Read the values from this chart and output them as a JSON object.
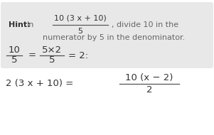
{
  "bg_color": "#ffffff",
  "hint_box_color": "#e8e8e8",
  "text_color": "#666666",
  "bold_color": "#333333",
  "line_color": "#555555",
  "fig_width": 3.01,
  "fig_height": 1.9,
  "dpi": 100,
  "hint_text1_bold": "Hint:",
  "hint_text1_normal": " In",
  "hint_num": "10 (3 x + 10)",
  "hint_den": "5",
  "hint_text2": ", divide 10 in the",
  "hint_text3": "numerator by 5 in the denominator.",
  "eq1_num1": "10",
  "eq1_den1": "5",
  "eq1_num2": "5×2",
  "eq1_den2": "5",
  "eq1_end": "= 2:",
  "eq2_left": "2 (3 x + 10) =",
  "eq2_num": "10 (x − 2)",
  "eq2_den": "2"
}
